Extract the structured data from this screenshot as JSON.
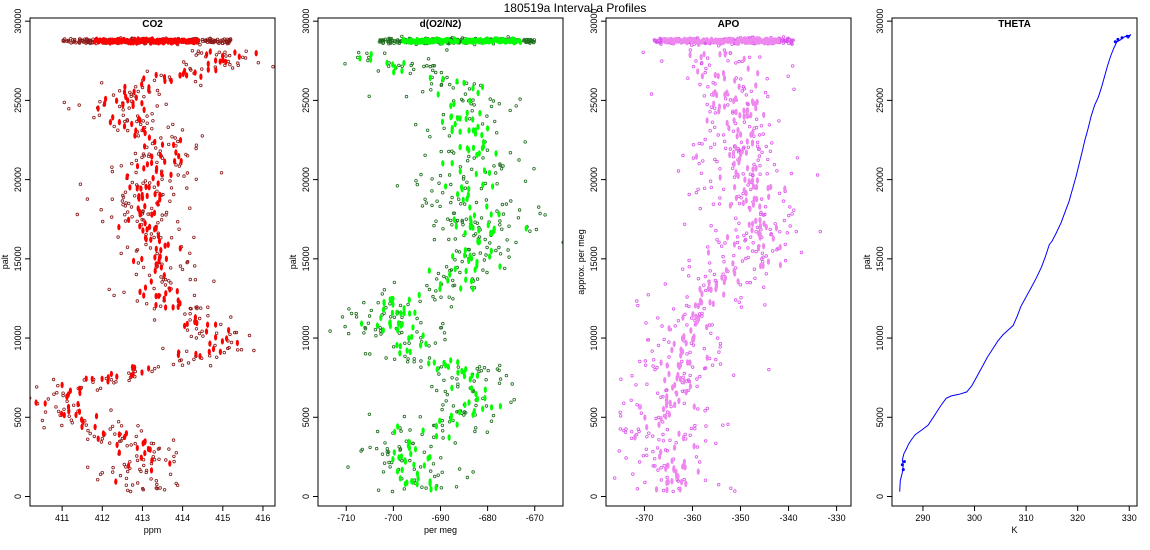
{
  "figure": {
    "title": "180519a   Interval a Profiles"
  },
  "chart_data": [
    {
      "type": "scatter",
      "title": "CO2",
      "xlabel": "ppm",
      "ylabel": "palt",
      "xlim": [
        410.2,
        416.3
      ],
      "ylim": [
        -600,
        30200
      ],
      "xticks": [
        411,
        412,
        413,
        414,
        415,
        416
      ],
      "yticks": [
        0,
        5000,
        10000,
        15000,
        20000,
        25000,
        30000
      ],
      "colors": {
        "open": "#8b1a1a",
        "filled": "#ff0000"
      },
      "profile": [
        [
          28900,
          413.2
        ],
        [
          28000,
          415.2
        ],
        [
          27000,
          414.5
        ],
        [
          26000,
          413.2
        ],
        [
          25000,
          412.3
        ],
        [
          23500,
          412.8
        ],
        [
          22000,
          413.6
        ],
        [
          20500,
          413.3
        ],
        [
          19000,
          413.1
        ],
        [
          17500,
          412.9
        ],
        [
          16000,
          413.4
        ],
        [
          14500,
          413.5
        ],
        [
          13000,
          413.4
        ],
        [
          12000,
          413.8
        ],
        [
          11000,
          414.3
        ],
        [
          10000,
          414.8
        ],
        [
          9000,
          414.5
        ],
        [
          8000,
          413.0
        ],
        [
          7000,
          411.3
        ],
        [
          6000,
          411.0
        ],
        [
          5000,
          411.4
        ],
        [
          4000,
          412.2
        ],
        [
          3000,
          413.0
        ],
        [
          2000,
          413.0
        ],
        [
          1000,
          413.0
        ],
        [
          400,
          413.0
        ]
      ],
      "spread": 0.6,
      "filled_spread": 0.3,
      "band": {
        "y": 28750,
        "x": [
          411.0,
          415.2
        ],
        "filled_x": [
          411.8,
          414.4
        ]
      }
    },
    {
      "type": "scatter",
      "title": "d(O2/N2)",
      "xlabel": "per meg",
      "ylabel": "palt",
      "xlim": [
        -716,
        -664
      ],
      "ylim": [
        -600,
        30200
      ],
      "xticks": [
        -710,
        -700,
        -690,
        -680,
        -670
      ],
      "yticks": [
        0,
        5000,
        10000,
        15000,
        20000,
        25000,
        30000
      ],
      "colors": {
        "open": "#1e6e1e",
        "filled": "#00ff00"
      },
      "profile": [
        [
          28900,
          -690
        ],
        [
          28000,
          -705
        ],
        [
          27000,
          -698
        ],
        [
          26000,
          -688
        ],
        [
          25000,
          -682
        ],
        [
          23500,
          -685
        ],
        [
          22000,
          -683
        ],
        [
          20500,
          -684
        ],
        [
          19000,
          -685
        ],
        [
          17500,
          -682
        ],
        [
          16000,
          -680
        ],
        [
          14500,
          -684
        ],
        [
          13000,
          -690
        ],
        [
          12000,
          -700
        ],
        [
          11000,
          -702
        ],
        [
          10000,
          -698
        ],
        [
          9000,
          -697
        ],
        [
          8000,
          -685
        ],
        [
          7000,
          -683
        ],
        [
          6000,
          -682
        ],
        [
          5000,
          -688
        ],
        [
          4000,
          -694
        ],
        [
          3000,
          -697
        ],
        [
          2000,
          -697
        ],
        [
          1000,
          -695
        ],
        [
          400,
          -693
        ]
      ],
      "spread": 6,
      "filled_spread": 3,
      "band": {
        "y": 28750,
        "x": [
          -703,
          -670
        ],
        "filled_x": [
          -698,
          -673
        ]
      }
    },
    {
      "type": "scatter",
      "title": "APO",
      "xlabel": "",
      "ylabel": "approx. per meg",
      "xlim": [
        -378,
        -327
      ],
      "ylim": [
        -600,
        30200
      ],
      "xticks": [
        -370,
        -360,
        -350,
        -340,
        -330
      ],
      "yticks": [
        0,
        5000,
        10000,
        15000,
        20000,
        25000,
        30000
      ],
      "colors": {
        "open": "#dd55ee",
        "filled": "#ee88ee"
      },
      "profile": [
        [
          28900,
          -355
        ],
        [
          28000,
          -356
        ],
        [
          27000,
          -355
        ],
        [
          26000,
          -353
        ],
        [
          25000,
          -352
        ],
        [
          23500,
          -350
        ],
        [
          22000,
          -350
        ],
        [
          20500,
          -351
        ],
        [
          19000,
          -350
        ],
        [
          17500,
          -348
        ],
        [
          16000,
          -347
        ],
        [
          14500,
          -350
        ],
        [
          13000,
          -355
        ],
        [
          12000,
          -358
        ],
        [
          11000,
          -360
        ],
        [
          10000,
          -362
        ],
        [
          9000,
          -363
        ],
        [
          8000,
          -362
        ],
        [
          7000,
          -364
        ],
        [
          6000,
          -365
        ],
        [
          5000,
          -366
        ],
        [
          4000,
          -366
        ],
        [
          3000,
          -365
        ],
        [
          2000,
          -364
        ],
        [
          1000,
          -363
        ],
        [
          400,
          -362
        ]
      ],
      "spread": 6,
      "filled_spread": 3,
      "band": {
        "y": 28750,
        "x": [
          -368,
          -339
        ],
        "filled_x": [
          -366,
          -342
        ]
      }
    },
    {
      "type": "line",
      "title": "THETA",
      "xlabel": "K",
      "ylabel": "palt",
      "xlim": [
        284,
        331.5
      ],
      "ylim": [
        -600,
        30200
      ],
      "xticks": [
        290,
        300,
        310,
        320,
        330
      ],
      "yticks": [
        0,
        5000,
        10000,
        15000,
        20000,
        25000,
        30000
      ],
      "colors": {
        "line": "#0000ff"
      },
      "series": [
        {
          "name": "theta",
          "points": [
            [
              285.5,
              300
            ],
            [
              285.6,
              1000
            ],
            [
              286.0,
              1500
            ],
            [
              286.2,
              2000
            ],
            [
              286.0,
              2300
            ],
            [
              286.3,
              2700
            ],
            [
              286.8,
              3000
            ],
            [
              287.2,
              3300
            ],
            [
              287.8,
              3600
            ],
            [
              288.5,
              3900
            ],
            [
              289.8,
              4200
            ],
            [
              291.0,
              4500
            ],
            [
              292.0,
              5000
            ],
            [
              292.8,
              5400
            ],
            [
              293.6,
              5800
            ],
            [
              294.5,
              6200
            ],
            [
              295.5,
              6350
            ],
            [
              297.0,
              6450
            ],
            [
              298.5,
              6600
            ],
            [
              299.5,
              7000
            ],
            [
              300.5,
              7600
            ],
            [
              301.5,
              8200
            ],
            [
              302.5,
              8800
            ],
            [
              303.5,
              9300
            ],
            [
              304.5,
              9800
            ],
            [
              305.5,
              10200
            ],
            [
              306.5,
              10500
            ],
            [
              307.5,
              10800
            ],
            [
              308.3,
              11400
            ],
            [
              309.0,
              12000
            ],
            [
              310.0,
              12600
            ],
            [
              311.0,
              13200
            ],
            [
              312.0,
              13800
            ],
            [
              313.0,
              14500
            ],
            [
              313.8,
              15200
            ],
            [
              314.5,
              15900
            ],
            [
              315.0,
              16100
            ],
            [
              315.8,
              16600
            ],
            [
              316.8,
              17300
            ],
            [
              317.6,
              18000
            ],
            [
              318.3,
              18600
            ],
            [
              319.0,
              19400
            ],
            [
              319.7,
              20200
            ],
            [
              320.3,
              21000
            ],
            [
              320.9,
              21800
            ],
            [
              321.4,
              22500
            ],
            [
              322.0,
              23200
            ],
            [
              322.6,
              24000
            ],
            [
              323.3,
              24700
            ],
            [
              324.0,
              25200
            ],
            [
              324.6,
              25800
            ],
            [
              325.2,
              26500
            ],
            [
              325.8,
              27200
            ],
            [
              326.4,
              27800
            ],
            [
              327.0,
              28300
            ],
            [
              327.6,
              28700
            ],
            [
              328.2,
              28800
            ],
            [
              329.0,
              29000
            ],
            [
              330.0,
              29100
            ],
            [
              330.3,
              29150
            ],
            [
              329.7,
              28900
            ],
            [
              330.1,
              29050
            ]
          ]
        }
      ],
      "markers": [
        [
          286.2,
          1700
        ],
        [
          286.0,
          2000
        ],
        [
          286.4,
          2200
        ],
        [
          327.3,
          28700
        ],
        [
          327.8,
          28850
        ],
        [
          328.6,
          28950
        ],
        [
          329.6,
          29050
        ]
      ]
    }
  ]
}
